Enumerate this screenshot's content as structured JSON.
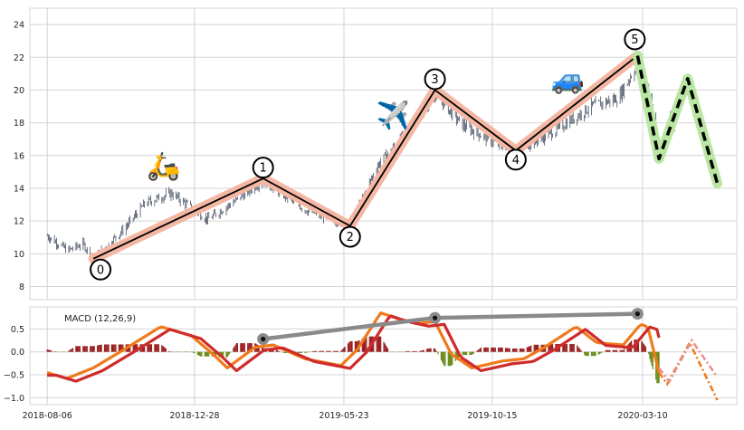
{
  "chart_data": [
    {
      "type": "line",
      "panel": "price",
      "subtype": "ohlc-bars with wave annotation",
      "x_ticks": [
        "2018-08-06",
        "2018-12-28",
        "2019-05-23",
        "2019-10-15",
        "2020-03-10"
      ],
      "x_range": [
        "2018-07-20",
        "2020-06-10"
      ],
      "ylim": [
        7.2,
        25
      ],
      "y_ticks": [
        8,
        10,
        12,
        14,
        16,
        18,
        20,
        22,
        24
      ],
      "grid": true,
      "price_anchors": [
        {
          "date": "2018-08-06",
          "value": 11.1
        },
        {
          "date": "2018-08-26",
          "value": 10.2
        },
        {
          "date": "2018-09-10",
          "value": 10.6
        },
        {
          "date": "2018-09-20",
          "value": 9.7
        },
        {
          "date": "2018-10-20",
          "value": 11.5
        },
        {
          "date": "2018-11-10",
          "value": 13.1
        },
        {
          "date": "2018-12-05",
          "value": 13.7
        },
        {
          "date": "2019-01-10",
          "value": 12.1
        },
        {
          "date": "2019-02-05",
          "value": 13.2
        },
        {
          "date": "2019-03-05",
          "value": 14.5
        },
        {
          "date": "2019-04-15",
          "value": 12.7
        },
        {
          "date": "2019-05-29",
          "value": 11.7
        },
        {
          "date": "2019-06-25",
          "value": 15.4
        },
        {
          "date": "2019-07-25",
          "value": 17.5
        },
        {
          "date": "2019-08-20",
          "value": 19.8
        },
        {
          "date": "2019-09-15",
          "value": 17.9
        },
        {
          "date": "2019-10-20",
          "value": 16.7
        },
        {
          "date": "2019-11-07",
          "value": 16.3
        },
        {
          "date": "2019-12-15",
          "value": 17.5
        },
        {
          "date": "2020-01-20",
          "value": 19.0
        },
        {
          "date": "2020-02-15",
          "value": 19.5
        },
        {
          "date": "2020-03-05",
          "value": 21.6
        },
        {
          "date": "2020-03-18",
          "value": 19.5
        },
        {
          "date": "2020-03-26",
          "value": 15.6
        },
        {
          "date": "2020-04-05",
          "value": 18.6
        },
        {
          "date": "2020-04-10",
          "value": 17.8
        }
      ],
      "wave_points": [
        {
          "label": "0",
          "date": "2018-09-20",
          "value": 9.7
        },
        {
          "label": "1",
          "date": "2019-03-05",
          "value": 14.6
        },
        {
          "label": "2",
          "date": "2019-05-29",
          "value": 11.7
        },
        {
          "label": "3",
          "date": "2019-08-20",
          "value": 20.0
        },
        {
          "label": "4",
          "date": "2019-11-07",
          "value": 16.3
        },
        {
          "label": "5",
          "date": "2020-03-05",
          "value": 22.1
        }
      ],
      "projection_points": [
        {
          "date": "2020-03-05",
          "value": 22.1
        },
        {
          "date": "2020-03-26",
          "value": 15.8
        },
        {
          "date": "2020-04-23",
          "value": 20.7
        },
        {
          "date": "2020-05-22",
          "value": 14.3
        }
      ],
      "icons": [
        {
          "name": "scooter-icon",
          "glyph": "🛵",
          "date": "2018-11-28",
          "value": 15.3
        },
        {
          "name": "airplane-icon",
          "glyph": "✈️",
          "date": "2019-07-10",
          "value": 18.4
        },
        {
          "name": "car-icon",
          "glyph": "🚙",
          "date": "2019-12-28",
          "value": 20.6
        }
      ],
      "colors": {
        "bars": "#2f3a4f",
        "wave": "#000000",
        "wave_glow": "#f4b7a3",
        "projection_glow": "#b9e7a3",
        "grid": "#d4d4d4"
      }
    },
    {
      "type": "line",
      "panel": "macd",
      "title": "MACD (12,26,9)",
      "ylim": [
        -1.15,
        0.98
      ],
      "y_ticks": [
        0.5,
        0.0,
        -0.5,
        -1.0
      ],
      "y_tick_labels": [
        "0.5",
        "0.0",
        "−0.5",
        "−1.0"
      ],
      "grid": true,
      "macd_anchors": [
        {
          "date": "2018-08-06",
          "value": -0.45
        },
        {
          "date": "2018-08-25",
          "value": -0.58
        },
        {
          "date": "2018-09-20",
          "value": -0.35
        },
        {
          "date": "2018-10-20",
          "value": 0.05
        },
        {
          "date": "2018-11-25",
          "value": 0.55
        },
        {
          "date": "2018-12-25",
          "value": 0.35
        },
        {
          "date": "2019-01-15",
          "value": -0.05
        },
        {
          "date": "2019-01-29",
          "value": -0.35
        },
        {
          "date": "2019-02-25",
          "value": 0.1
        },
        {
          "date": "2019-03-15",
          "value": 0.15
        },
        {
          "date": "2019-04-15",
          "value": -0.15
        },
        {
          "date": "2019-05-20",
          "value": -0.3
        },
        {
          "date": "2019-06-05",
          "value": 0.05
        },
        {
          "date": "2019-06-28",
          "value": 0.85
        },
        {
          "date": "2019-07-15",
          "value": 0.72
        },
        {
          "date": "2019-08-05",
          "value": 0.62
        },
        {
          "date": "2019-08-20",
          "value": 0.66
        },
        {
          "date": "2019-09-05",
          "value": -0.05
        },
        {
          "date": "2019-09-25",
          "value": -0.35
        },
        {
          "date": "2019-10-25",
          "value": -0.2
        },
        {
          "date": "2019-11-15",
          "value": -0.15
        },
        {
          "date": "2019-12-05",
          "value": 0.1
        },
        {
          "date": "2020-01-05",
          "value": 0.55
        },
        {
          "date": "2020-01-25",
          "value": 0.2
        },
        {
          "date": "2020-02-20",
          "value": 0.15
        },
        {
          "date": "2020-03-08",
          "value": 0.6
        },
        {
          "date": "2020-03-15",
          "value": 0.55
        },
        {
          "date": "2020-03-26",
          "value": -0.45
        }
      ],
      "signal_offset": -0.06,
      "projection_macd": [
        {
          "date": "2020-03-26",
          "value": -0.45
        },
        {
          "date": "2020-04-03",
          "value": -0.7
        },
        {
          "date": "2020-04-25",
          "value": 0.2
        },
        {
          "date": "2020-05-22",
          "value": -1.05
        }
      ],
      "projection_signal": [
        {
          "date": "2020-03-26",
          "value": -0.35
        },
        {
          "date": "2020-04-05",
          "value": -0.65
        },
        {
          "date": "2020-04-27",
          "value": 0.25
        },
        {
          "date": "2020-05-22",
          "value": -0.55
        }
      ],
      "divergence_points": [
        {
          "date": "2019-03-05",
          "value": 0.28
        },
        {
          "date": "2019-08-20",
          "value": 0.74
        },
        {
          "date": "2020-03-05",
          "value": 0.83
        }
      ],
      "colors": {
        "macd": "#ef7a1a",
        "signal": "#cf2b2b",
        "hist_pos": "#9a1f1f",
        "hist_neg": "#6a8a1a",
        "divergence": "#8a8a8a"
      }
    }
  ]
}
